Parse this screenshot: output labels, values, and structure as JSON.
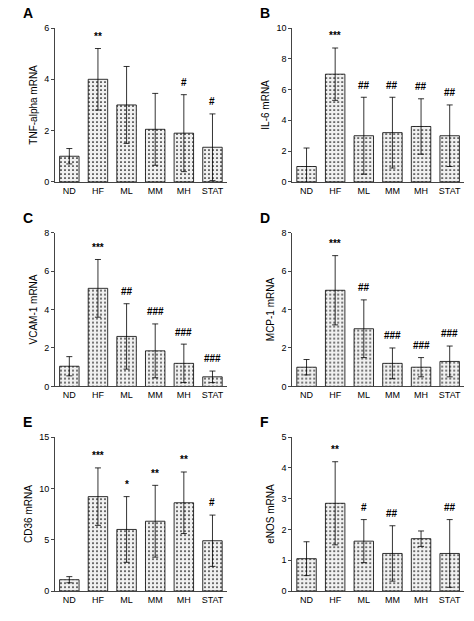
{
  "chart_data": [
    {
      "type": "bar",
      "title": "A",
      "ylabel": "TNF-alpha mRNA",
      "categories": [
        "ND",
        "HF",
        "ML",
        "MM",
        "MH",
        "STAT"
      ],
      "values": [
        1.0,
        4.0,
        3.0,
        2.05,
        1.9,
        1.35
      ],
      "errors": [
        0.3,
        1.2,
        1.5,
        1.4,
        1.5,
        1.3
      ],
      "annotations": [
        {
          "category": "HF",
          "text": "**"
        },
        {
          "category": "MH",
          "text": "#"
        },
        {
          "category": "STAT",
          "text": "#"
        }
      ],
      "ylim": [
        0,
        6
      ],
      "yticks": [
        0,
        2,
        4,
        6
      ],
      "color": "#f0f0f0",
      "grid": false
    },
    {
      "type": "bar",
      "title": "B",
      "ylabel": "IL-6 mRNA",
      "categories": [
        "ND",
        "HF",
        "ML",
        "MM",
        "MH",
        "STAT"
      ],
      "values": [
        1.0,
        7.0,
        3.0,
        3.2,
        3.6,
        3.0
      ],
      "errors": [
        1.2,
        1.7,
        2.5,
        2.3,
        1.8,
        2.0
      ],
      "annotations": [
        {
          "category": "HF",
          "text": "***"
        },
        {
          "category": "ML",
          "text": "##"
        },
        {
          "category": "MM",
          "text": "##"
        },
        {
          "category": "MH",
          "text": "##"
        },
        {
          "category": "STAT",
          "text": "##"
        }
      ],
      "ylim": [
        0,
        10
      ],
      "yticks": [
        0,
        2,
        4,
        6,
        8,
        10
      ],
      "color": "#f0f0f0",
      "grid": false
    },
    {
      "type": "bar",
      "title": "C",
      "ylabel": "VCAM-1 mRNA",
      "categories": [
        "ND",
        "HF",
        "ML",
        "MM",
        "MH",
        "STAT"
      ],
      "values": [
        1.05,
        5.1,
        2.6,
        1.85,
        1.2,
        0.5
      ],
      "errors": [
        0.5,
        1.5,
        1.7,
        1.4,
        1.0,
        0.3
      ],
      "annotations": [
        {
          "category": "HF",
          "text": "***"
        },
        {
          "category": "ML",
          "text": "##"
        },
        {
          "category": "MM",
          "text": "###"
        },
        {
          "category": "MH",
          "text": "###"
        },
        {
          "category": "STAT",
          "text": "###"
        }
      ],
      "ylim": [
        0,
        8
      ],
      "yticks": [
        0,
        2,
        4,
        6,
        8
      ],
      "color": "#f0f0f0",
      "grid": false
    },
    {
      "type": "bar",
      "title": "D",
      "ylabel": "MCP-1 mRNA",
      "categories": [
        "ND",
        "HF",
        "ML",
        "MM",
        "MH",
        "STAT"
      ],
      "values": [
        1.0,
        5.0,
        3.0,
        1.2,
        1.0,
        1.3
      ],
      "errors": [
        0.4,
        1.8,
        1.5,
        0.8,
        0.5,
        0.8
      ],
      "annotations": [
        {
          "category": "HF",
          "text": "***"
        },
        {
          "category": "ML",
          "text": "##"
        },
        {
          "category": "MM",
          "text": "###"
        },
        {
          "category": "MH",
          "text": "###"
        },
        {
          "category": "STAT",
          "text": "###"
        }
      ],
      "ylim": [
        0,
        8
      ],
      "yticks": [
        0,
        2,
        4,
        6,
        8
      ],
      "color": "#f0f0f0",
      "grid": false
    },
    {
      "type": "bar",
      "title": "E",
      "ylabel": "CD36 mRNA",
      "categories": [
        "ND",
        "HF",
        "ML",
        "MM",
        "MH",
        "STAT"
      ],
      "values": [
        1.1,
        9.2,
        6.0,
        6.8,
        8.6,
        4.9
      ],
      "errors": [
        0.3,
        2.8,
        3.2,
        3.5,
        3.0,
        2.5
      ],
      "annotations": [
        {
          "category": "HF",
          "text": "***"
        },
        {
          "category": "ML",
          "text": "*"
        },
        {
          "category": "MM",
          "text": "**"
        },
        {
          "category": "MH",
          "text": "**"
        },
        {
          "category": "STAT",
          "text": "#"
        }
      ],
      "ylim": [
        0,
        15
      ],
      "yticks": [
        0,
        5,
        10,
        15
      ],
      "color": "#f0f0f0",
      "grid": false
    },
    {
      "type": "bar",
      "title": "F",
      "ylabel": "eNOS mRNA",
      "categories": [
        "ND",
        "HF",
        "ML",
        "MM",
        "MH",
        "STAT"
      ],
      "values": [
        1.05,
        2.85,
        1.62,
        1.22,
        1.7,
        1.22
      ],
      "errors": [
        0.55,
        1.35,
        0.7,
        0.9,
        0.25,
        1.1
      ],
      "annotations": [
        {
          "category": "HF",
          "text": "**"
        },
        {
          "category": "ML",
          "text": "#"
        },
        {
          "category": "MM",
          "text": "##"
        },
        {
          "category": "STAT",
          "text": "##"
        }
      ],
      "ylim": [
        0,
        5
      ],
      "yticks": [
        0,
        1,
        2,
        3,
        4,
        5
      ],
      "color": "#f0f0f0",
      "grid": false
    }
  ]
}
